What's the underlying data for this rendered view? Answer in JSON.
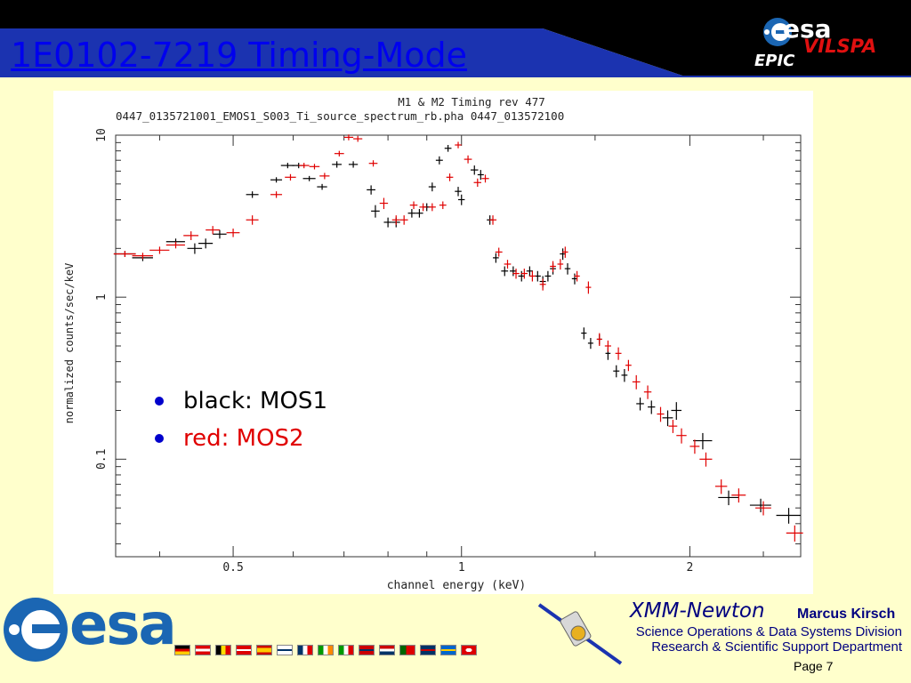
{
  "slide": {
    "title": "1E0102-7219 Timing-Mode",
    "logo_text": "esa",
    "vilspa": "VILSPA",
    "epic": "EPIC"
  },
  "footer": {
    "mission": "XMM-Newton",
    "author": "Marcus Kirsch",
    "division": "Science Operations & Data Systems Division",
    "department": "Research & Scientific Support Department",
    "page": "Page 7",
    "flags": [
      "Germany",
      "Austria",
      "Belgium",
      "Denmark",
      "Spain",
      "Finland",
      "France",
      "Ireland",
      "Italy",
      "Norway",
      "Netherlands",
      "Portugal",
      "United Kingdom",
      "Sweden",
      "Switzerland"
    ]
  },
  "legend": {
    "items": [
      {
        "text": "black: MOS1",
        "color": "#000000"
      },
      {
        "text": "red: MOS2",
        "color": "#e00000"
      }
    ]
  },
  "colors": {
    "background": "#ffffcc",
    "header_bg": "#000000",
    "header_band": "#1b33b0",
    "title": "#0000ee",
    "mos1": "#000000",
    "mos2": "#e00000",
    "esa_blue": "#1b66b3"
  },
  "chart_data": {
    "type": "scatter",
    "title": "M1 & M2 Timing rev 477",
    "subtitle": "0447_0135721001_EMOS1_S003_Ti_source_spectrum_rb.pha 0447_013572100",
    "xlabel": "channel energy (keV)",
    "ylabel": "normalized counts/sec/keV",
    "xscale": "log",
    "yscale": "log",
    "xlim": [
      0.35,
      2.8
    ],
    "ylim": [
      0.025,
      10
    ],
    "xticks": [
      0.5,
      1,
      2
    ],
    "xtick_labels": [
      "0.5",
      "1",
      "2"
    ],
    "yticks": [
      0.1,
      1,
      10
    ],
    "ytick_labels": [
      "0.1",
      "1",
      "10"
    ],
    "series": [
      {
        "name": "MOS1",
        "color": "#000000",
        "x": [
          0.36,
          0.38,
          0.42,
          0.445,
          0.46,
          0.48,
          0.53,
          0.57,
          0.59,
          0.61,
          0.63,
          0.655,
          0.685,
          0.72,
          0.76,
          0.77,
          0.8,
          0.82,
          0.86,
          0.88,
          0.9,
          0.915,
          0.935,
          0.96,
          0.99,
          1.0,
          1.04,
          1.06,
          1.09,
          1.11,
          1.14,
          1.17,
          1.2,
          1.23,
          1.26,
          1.28,
          1.3,
          1.32,
          1.36,
          1.38,
          1.41,
          1.45,
          1.48,
          1.52,
          1.56,
          1.6,
          1.64,
          1.72,
          1.78,
          1.87,
          1.92,
          2.08,
          2.25,
          2.48,
          2.7
        ],
        "xerr": [
          0.012,
          0.012,
          0.012,
          0.01,
          0.01,
          0.01,
          0.01,
          0.01,
          0.012,
          0.012,
          0.012,
          0.01,
          0.01,
          0.01,
          0.01,
          0.01,
          0.01,
          0.01,
          0.01,
          0.01,
          0.01,
          0.01,
          0.01,
          0.01,
          0.01,
          0.01,
          0.012,
          0.01,
          0.01,
          0.01,
          0.012,
          0.012,
          0.012,
          0.012,
          0.012,
          0.012,
          0.012,
          0.012,
          0.012,
          0.012,
          0.012,
          0.012,
          0.012,
          0.012,
          0.012,
          0.015,
          0.015,
          0.02,
          0.02,
          0.03,
          0.03,
          0.06,
          0.07,
          0.08,
          0.1
        ],
        "y": [
          1.85,
          1.75,
          2.2,
          2.0,
          2.15,
          2.45,
          4.3,
          5.3,
          6.5,
          6.5,
          5.4,
          4.8,
          6.6,
          6.6,
          4.6,
          3.4,
          2.9,
          2.9,
          3.3,
          3.3,
          3.6,
          4.8,
          7.0,
          8.3,
          4.5,
          4.0,
          6.1,
          5.7,
          3.0,
          1.75,
          1.45,
          1.45,
          1.35,
          1.45,
          1.35,
          1.25,
          1.35,
          1.5,
          1.85,
          1.5,
          1.3,
          0.6,
          0.52,
          0.55,
          0.45,
          0.35,
          0.33,
          0.22,
          0.21,
          0.18,
          0.2,
          0.13,
          0.058,
          0.052,
          0.045
        ],
        "yerr": [
          0.08,
          0.08,
          0.1,
          0.15,
          0.15,
          0.15,
          0.2,
          0.2,
          0.25,
          0.25,
          0.2,
          0.2,
          0.3,
          0.3,
          0.3,
          0.3,
          0.2,
          0.2,
          0.2,
          0.2,
          0.2,
          0.3,
          0.4,
          0.4,
          0.3,
          0.3,
          0.4,
          0.4,
          0.2,
          0.12,
          0.1,
          0.1,
          0.1,
          0.1,
          0.1,
          0.1,
          0.1,
          0.12,
          0.15,
          0.12,
          0.1,
          0.05,
          0.04,
          0.04,
          0.04,
          0.03,
          0.03,
          0.02,
          0.02,
          0.02,
          0.025,
          0.015,
          0.006,
          0.005,
          0.005
        ]
      },
      {
        "name": "MOS2",
        "color": "#e00000",
        "x": [
          0.36,
          0.38,
          0.4,
          0.42,
          0.44,
          0.47,
          0.5,
          0.53,
          0.57,
          0.595,
          0.62,
          0.64,
          0.66,
          0.69,
          0.71,
          0.73,
          0.765,
          0.79,
          0.82,
          0.84,
          0.865,
          0.89,
          0.915,
          0.945,
          0.965,
          0.99,
          1.02,
          1.05,
          1.075,
          1.1,
          1.12,
          1.15,
          1.18,
          1.21,
          1.24,
          1.28,
          1.32,
          1.35,
          1.37,
          1.42,
          1.47,
          1.52,
          1.56,
          1.61,
          1.66,
          1.7,
          1.76,
          1.83,
          1.9,
          1.95,
          2.03,
          2.1,
          2.2,
          2.32,
          2.5,
          2.75
        ],
        "xerr": [
          0.012,
          0.012,
          0.012,
          0.012,
          0.01,
          0.01,
          0.01,
          0.01,
          0.01,
          0.01,
          0.01,
          0.01,
          0.01,
          0.01,
          0.01,
          0.01,
          0.01,
          0.01,
          0.01,
          0.01,
          0.01,
          0.01,
          0.01,
          0.01,
          0.01,
          0.01,
          0.012,
          0.012,
          0.012,
          0.012,
          0.012,
          0.012,
          0.012,
          0.012,
          0.012,
          0.012,
          0.012,
          0.012,
          0.012,
          0.012,
          0.012,
          0.012,
          0.015,
          0.015,
          0.015,
          0.02,
          0.02,
          0.02,
          0.025,
          0.03,
          0.03,
          0.04,
          0.04,
          0.05,
          0.06,
          0.07
        ],
        "y": [
          1.85,
          1.8,
          1.95,
          2.1,
          2.4,
          2.6,
          2.5,
          3.0,
          4.3,
          5.5,
          6.5,
          6.4,
          5.6,
          7.7,
          9.7,
          9.5,
          6.7,
          3.8,
          3.0,
          3.0,
          3.7,
          3.6,
          3.6,
          3.7,
          5.5,
          8.7,
          7.1,
          5.1,
          5.4,
          3.0,
          1.9,
          1.6,
          1.4,
          1.4,
          1.35,
          1.2,
          1.55,
          1.6,
          1.9,
          1.35,
          1.15,
          0.55,
          0.5,
          0.45,
          0.38,
          0.3,
          0.26,
          0.19,
          0.16,
          0.14,
          0.12,
          0.1,
          0.068,
          0.06,
          0.05,
          0.035
        ],
        "yerr": [
          0.08,
          0.08,
          0.1,
          0.1,
          0.15,
          0.15,
          0.15,
          0.2,
          0.2,
          0.25,
          0.25,
          0.25,
          0.25,
          0.3,
          0.4,
          0.4,
          0.3,
          0.3,
          0.2,
          0.2,
          0.2,
          0.2,
          0.2,
          0.2,
          0.3,
          0.4,
          0.4,
          0.3,
          0.3,
          0.2,
          0.12,
          0.1,
          0.1,
          0.1,
          0.1,
          0.1,
          0.12,
          0.12,
          0.15,
          0.1,
          0.1,
          0.05,
          0.04,
          0.04,
          0.03,
          0.03,
          0.025,
          0.02,
          0.015,
          0.015,
          0.012,
          0.01,
          0.007,
          0.006,
          0.005,
          0.004
        ]
      }
    ]
  }
}
